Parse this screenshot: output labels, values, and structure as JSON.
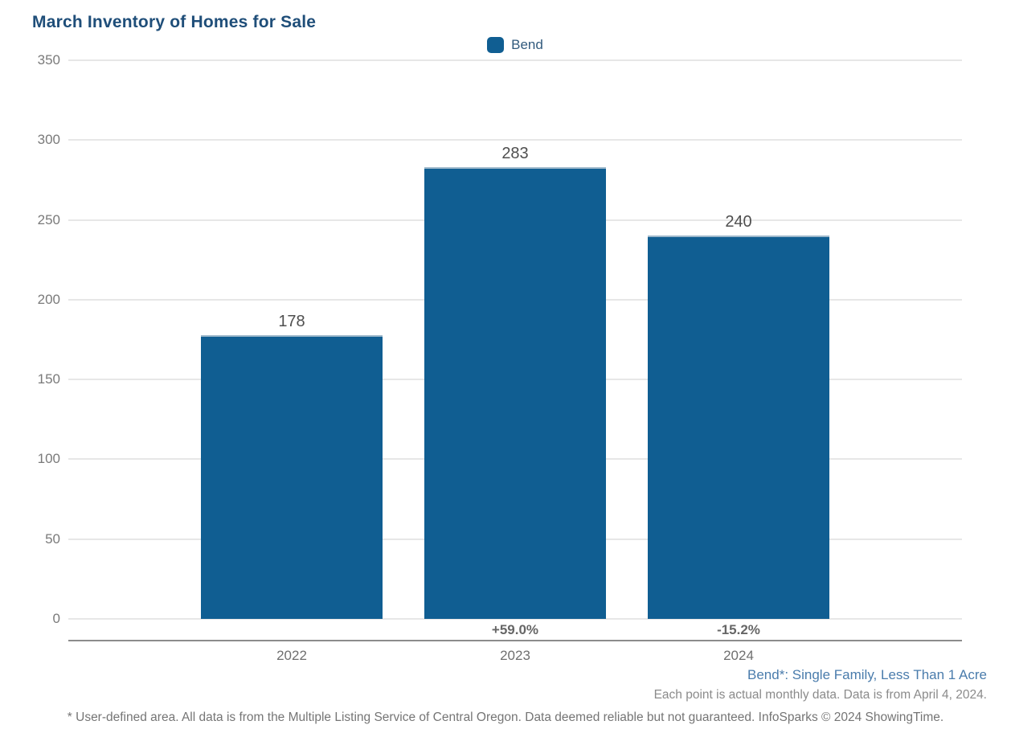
{
  "title": "March Inventory of Homes for Sale",
  "legend": {
    "label": "Bend",
    "swatch_color": "#105E92"
  },
  "chart_data": {
    "type": "bar",
    "title": "March Inventory of Homes for Sale",
    "categories": [
      "2022",
      "2023",
      "2024"
    ],
    "series": [
      {
        "name": "Bend",
        "values": [
          178,
          283,
          240
        ]
      }
    ],
    "value_labels": [
      "178",
      "283",
      "240"
    ],
    "pct_change_labels": [
      "",
      "+59.0%",
      "-15.2%"
    ],
    "y_ticks": [
      0,
      50,
      100,
      150,
      200,
      250,
      300,
      350
    ],
    "ylim": [
      0,
      350
    ],
    "xlabel": "",
    "ylabel": "",
    "grid": "horizontal",
    "legend_position": "top-center",
    "bar_color": "#105E92"
  },
  "footnotes": {
    "series_definition": "Bend*: Single Family, Less Than 1 Acre",
    "data_note": "Each point is actual monthly data. Data is from April 4, 2024.",
    "disclaimer": "* User-defined area. All data is from the Multiple Listing Service of Central Oregon. Data deemed reliable but not guaranteed. InfoSparks © 2024 ShowingTime."
  },
  "colors": {
    "title": "#1F4E79",
    "bar": "#105E92",
    "grid": "#E7E7E7",
    "axis": "#8C8C8C",
    "tick_label": "#7A7A7A",
    "value_label": "#4F4F4F",
    "pct_label": "#666666",
    "footnote_blue": "#4A7CAC",
    "footnote_gray": "#8B8B8B"
  }
}
